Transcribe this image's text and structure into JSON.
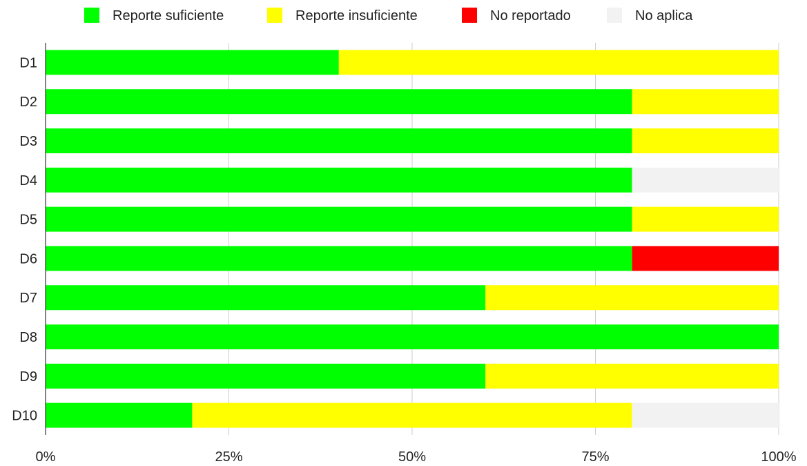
{
  "chart_data": {
    "type": "bar",
    "orientation": "horizontal",
    "stacked": "percent",
    "categories": [
      "D1",
      "D2",
      "D3",
      "D4",
      "D5",
      "D6",
      "D7",
      "D8",
      "D9",
      "D10"
    ],
    "series": [
      {
        "name": "Reporte suficiente",
        "color": "#00ff00",
        "values": [
          40,
          80,
          80,
          80,
          80,
          80,
          60,
          100,
          60,
          20
        ]
      },
      {
        "name": "Reporte insuficiente",
        "color": "#ffff00",
        "values": [
          60,
          20,
          20,
          0,
          20,
          0,
          40,
          0,
          40,
          60
        ]
      },
      {
        "name": "No reportado",
        "color": "#ff0000",
        "values": [
          0,
          0,
          0,
          0,
          0,
          20,
          0,
          0,
          0,
          0
        ]
      },
      {
        "name": "No aplica",
        "color": "#f2f2f2",
        "values": [
          0,
          0,
          0,
          20,
          0,
          0,
          0,
          0,
          0,
          20
        ]
      }
    ],
    "x_ticks": [
      "0%",
      "25%",
      "50%",
      "75%",
      "100%"
    ],
    "xlim": [
      0,
      100
    ],
    "grid": true,
    "legend_position": "top",
    "title": "",
    "xlabel": "",
    "ylabel": ""
  }
}
